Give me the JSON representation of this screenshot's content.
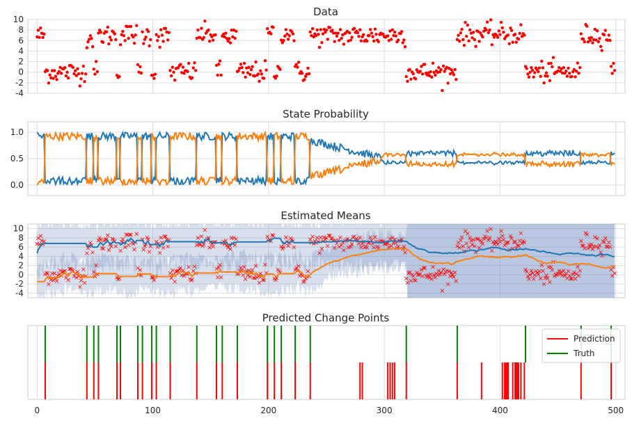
{
  "chart_data": [
    {
      "type": "scatter",
      "title": "Data",
      "xlim": [
        -8,
        508
      ],
      "ylim": [
        -4,
        10
      ],
      "yticks": [
        -4,
        -2,
        0,
        2,
        4,
        6,
        8,
        10
      ],
      "grid": true,
      "marker_color": "#ff0000",
      "segments": [
        {
          "start": 0,
          "end": 7,
          "level": 7.0
        },
        {
          "start": 7,
          "end": 43,
          "level": 0.0
        },
        {
          "start": 43,
          "end": 49,
          "level": 6.5
        },
        {
          "start": 49,
          "end": 53,
          "level": 0.0
        },
        {
          "start": 53,
          "end": 69,
          "level": 7.0
        },
        {
          "start": 69,
          "end": 72,
          "level": 0.0
        },
        {
          "start": 72,
          "end": 87,
          "level": 7.2
        },
        {
          "start": 87,
          "end": 91,
          "level": 0.0
        },
        {
          "start": 91,
          "end": 99,
          "level": 7.0
        },
        {
          "start": 99,
          "end": 103,
          "level": 0.0
        },
        {
          "start": 103,
          "end": 115,
          "level": 6.8
        },
        {
          "start": 115,
          "end": 138,
          "level": 0.0
        },
        {
          "start": 138,
          "end": 155,
          "level": 7.2
        },
        {
          "start": 155,
          "end": 160,
          "level": 0.0
        },
        {
          "start": 160,
          "end": 173,
          "level": 6.8
        },
        {
          "start": 173,
          "end": 199,
          "level": 0.0
        },
        {
          "start": 199,
          "end": 205,
          "level": 7.2
        },
        {
          "start": 205,
          "end": 211,
          "level": 0.0
        },
        {
          "start": 211,
          "end": 223,
          "level": 7.5
        },
        {
          "start": 223,
          "end": 236,
          "level": 0.0
        },
        {
          "start": 236,
          "end": 319,
          "level": 7.0
        },
        {
          "start": 319,
          "end": 363,
          "level": 0.0
        },
        {
          "start": 363,
          "end": 422,
          "level": 7.2
        },
        {
          "start": 422,
          "end": 470,
          "level": 0.0
        },
        {
          "start": 470,
          "end": 496,
          "level": 7.0
        },
        {
          "start": 496,
          "end": 500,
          "level": 0.0
        }
      ]
    },
    {
      "type": "line",
      "title": "State Probability",
      "xlim": [
        -8,
        508
      ],
      "ylim": [
        -0.2,
        1.2
      ],
      "yticks": [
        0.0,
        0.5,
        1.0
      ],
      "grid": true,
      "series": [
        {
          "color": "#1f77b4"
        },
        {
          "color": "#ff7f0e"
        }
      ]
    },
    {
      "type": "line",
      "title": "Estimated Means",
      "xlim": [
        -8,
        508
      ],
      "ylim": [
        -5,
        11
      ],
      "yticks": [
        -4,
        -2,
        0,
        2,
        4,
        6,
        8,
        10
      ],
      "grid": true,
      "band_color": "#4c72b0",
      "marker_color": "#ff0000",
      "series": [
        {
          "color": "#1f77b4"
        },
        {
          "color": "#ff7f0e"
        }
      ]
    },
    {
      "type": "event",
      "title": "Predicted Change Points",
      "xlim": [
        -8,
        508
      ],
      "xticks": [
        0,
        100,
        200,
        300,
        400,
        500
      ],
      "grid": true,
      "legend": {
        "position": "top-right",
        "entries": [
          {
            "name": "Prediction",
            "color": "#ff0000"
          },
          {
            "name": "Truth",
            "color": "#008000"
          }
        ]
      },
      "prediction_points": [
        7,
        43,
        49,
        53,
        69,
        72,
        87,
        91,
        99,
        103,
        115,
        138,
        155,
        160,
        173,
        199,
        205,
        211,
        223,
        236,
        279,
        281,
        303,
        305,
        307,
        309,
        319,
        363,
        384,
        402,
        404,
        405,
        406,
        407,
        411,
        413,
        414,
        415,
        416,
        418,
        421,
        470,
        496
      ],
      "truth_points": [
        7,
        43,
        49,
        53,
        69,
        72,
        87,
        91,
        99,
        103,
        115,
        138,
        155,
        160,
        173,
        199,
        205,
        211,
        223,
        236,
        319,
        363,
        422,
        470,
        496
      ]
    }
  ]
}
